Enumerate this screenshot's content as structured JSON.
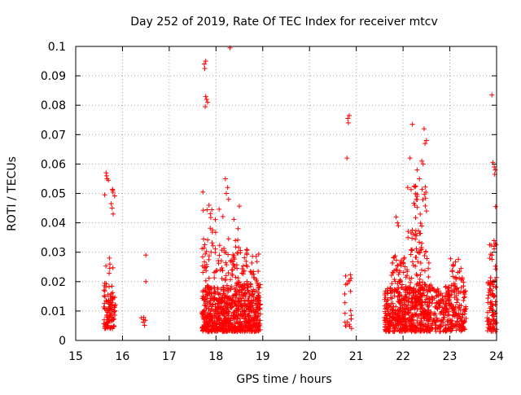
{
  "chart_data": {
    "type": "scatter",
    "title": "Day 252 of 2019, Rate Of TEC Index for receiver mtcv",
    "xlabel": "GPS time / hours",
    "ylabel": "ROTI / TECUs",
    "xlim": [
      15,
      24
    ],
    "ylim": [
      0,
      0.1
    ],
    "xticks": [
      15,
      16,
      17,
      18,
      19,
      20,
      21,
      22,
      23,
      24
    ],
    "yticks": [
      0,
      0.01,
      0.02,
      0.03,
      0.04,
      0.05,
      0.06,
      0.07,
      0.08,
      0.09,
      0.1
    ],
    "xtick_labels": [
      "15",
      "16",
      "17",
      "18",
      "19",
      "20",
      "21",
      "22",
      "23",
      "24"
    ],
    "ytick_labels": [
      "0",
      "0.01",
      "0.02",
      "0.03",
      "0.04",
      "0.05",
      "0.06",
      "0.07",
      "0.08",
      "0.09",
      "0.1"
    ],
    "grid": true,
    "marker": "+",
    "series": [
      {
        "name": "ROTI",
        "color": "#ff0000",
        "clusters": [
          {
            "x_range": [
              15.6,
              15.85
            ],
            "y_range": [
              0.004,
              0.016
            ],
            "count": 90
          },
          {
            "x_range": [
              15.6,
              15.8
            ],
            "y_range": [
              0.016,
              0.028
            ],
            "count": 14
          },
          {
            "x_range": [
              15.75,
              15.85
            ],
            "y_range": [
              0.049,
              0.057
            ],
            "count": 4
          },
          {
            "x_range": [
              16.4,
              16.55
            ],
            "y_range": [
              0.005,
              0.012
            ],
            "count": 6
          },
          {
            "x_range": [
              17.7,
              18.95
            ],
            "y_range": [
              0.003,
              0.018
            ],
            "count": 750
          },
          {
            "x_range": [
              17.7,
              18.95
            ],
            "y_range": [
              0.018,
              0.032
            ],
            "count": 130
          },
          {
            "x_range": [
              17.7,
              18.5
            ],
            "y_range": [
              0.032,
              0.046
            ],
            "count": 24
          },
          {
            "x_range": [
              20.75,
              20.9
            ],
            "y_range": [
              0.003,
              0.023
            ],
            "count": 22
          },
          {
            "x_range": [
              21.6,
              22.6
            ],
            "y_range": [
              0.003,
              0.018
            ],
            "count": 520
          },
          {
            "x_range": [
              21.75,
              22.6
            ],
            "y_range": [
              0.018,
              0.03
            ],
            "count": 80
          },
          {
            "x_range": [
              22.1,
              22.5
            ],
            "y_range": [
              0.03,
              0.056
            ],
            "count": 45
          },
          {
            "x_range": [
              22.6,
              23.35
            ],
            "y_range": [
              0.003,
              0.018
            ],
            "count": 260
          },
          {
            "x_range": [
              22.9,
              23.3
            ],
            "y_range": [
              0.018,
              0.028
            ],
            "count": 30
          },
          {
            "x_range": [
              23.8,
              24.0
            ],
            "y_range": [
              0.003,
              0.02
            ],
            "count": 80
          },
          {
            "x_range": [
              23.85,
              24.0
            ],
            "y_range": [
              0.02,
              0.034
            ],
            "count": 14
          }
        ],
        "points": [
          [
            15.62,
            0.0495
          ],
          [
            15.66,
            0.056
          ],
          [
            15.65,
            0.057
          ],
          [
            15.67,
            0.055
          ],
          [
            15.7,
            0.0545
          ],
          [
            15.76,
            0.0465
          ],
          [
            15.78,
            0.045
          ],
          [
            15.8,
            0.043
          ],
          [
            15.72,
            0.028
          ],
          [
            16.5,
            0.029
          ],
          [
            16.5,
            0.02
          ],
          [
            17.75,
            0.094
          ],
          [
            17.78,
            0.095
          ],
          [
            17.76,
            0.0925
          ],
          [
            18.3,
            0.0995
          ],
          [
            17.78,
            0.083
          ],
          [
            17.8,
            0.082
          ],
          [
            17.82,
            0.081
          ],
          [
            17.77,
            0.0795
          ],
          [
            17.72,
            0.0505
          ],
          [
            17.85,
            0.046
          ],
          [
            18.2,
            0.055
          ],
          [
            18.25,
            0.052
          ],
          [
            18.22,
            0.05
          ],
          [
            18.27,
            0.048
          ],
          [
            20.82,
            0.0755
          ],
          [
            20.85,
            0.0765
          ],
          [
            20.83,
            0.074
          ],
          [
            20.8,
            0.062
          ],
          [
            22.2,
            0.0735
          ],
          [
            22.45,
            0.072
          ],
          [
            22.5,
            0.068
          ],
          [
            22.47,
            0.067
          ],
          [
            22.4,
            0.061
          ],
          [
            22.43,
            0.06
          ],
          [
            22.3,
            0.058
          ],
          [
            22.15,
            0.062
          ],
          [
            22.35,
            0.055
          ],
          [
            21.85,
            0.042
          ],
          [
            21.9,
            0.039
          ],
          [
            21.88,
            0.04
          ],
          [
            22.25,
            0.046
          ],
          [
            22.28,
            0.048
          ],
          [
            22.1,
            0.052
          ],
          [
            22.3,
            0.049
          ],
          [
            22.5,
            0.044
          ],
          [
            23.9,
            0.0835
          ],
          [
            23.92,
            0.0605
          ],
          [
            23.95,
            0.059
          ],
          [
            23.97,
            0.058
          ],
          [
            23.96,
            0.0565
          ],
          [
            23.98,
            0.0455
          ],
          [
            23.9,
            0.029
          ],
          [
            23.95,
            0.032
          ],
          [
            23.97,
            0.033
          ]
        ]
      }
    ]
  }
}
